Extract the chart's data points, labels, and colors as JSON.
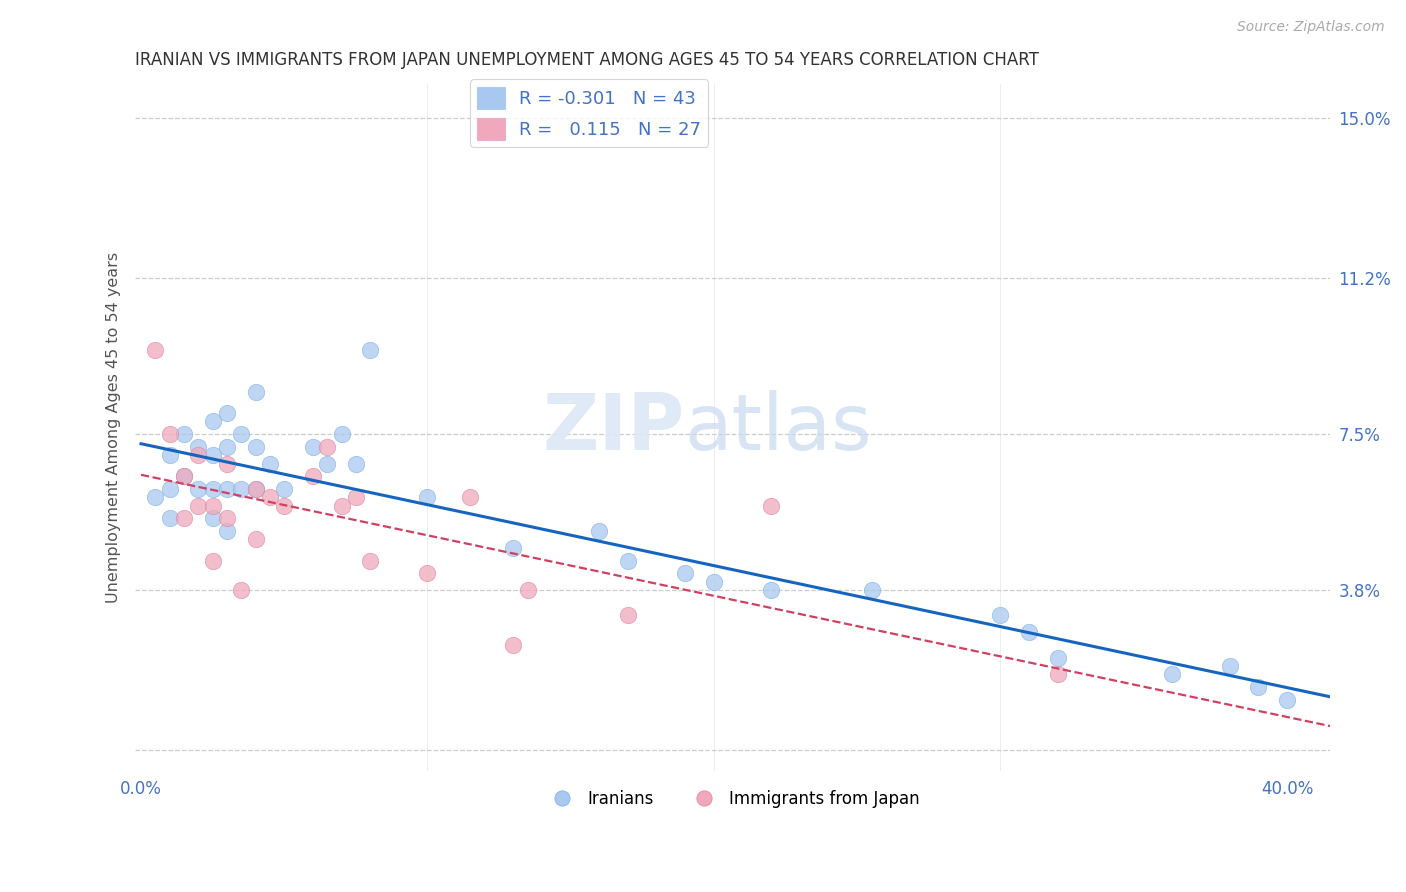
{
  "title": "IRANIAN VS IMMIGRANTS FROM JAPAN UNEMPLOYMENT AMONG AGES 45 TO 54 YEARS CORRELATION CHART",
  "source": "Source: ZipAtlas.com",
  "ylabel": "Unemployment Among Ages 45 to 54 years",
  "xlim": [
    -0.002,
    0.415
  ],
  "ylim": [
    -0.005,
    0.158
  ],
  "ytick_positions": [
    0.0,
    0.038,
    0.075,
    0.112,
    0.15
  ],
  "ytick_labels": [
    "",
    "3.8%",
    "7.5%",
    "11.2%",
    "15.0%"
  ],
  "xtick_positions": [
    0.0,
    0.1,
    0.2,
    0.3,
    0.4
  ],
  "xtick_labels": [
    "0.0%",
    "",
    "",
    "",
    "40.0%"
  ],
  "watermark_zip": "ZIP",
  "watermark_atlas": "atlas",
  "color_blue": "#a8c8f0",
  "color_pink": "#f0a8bc",
  "line_color_blue": "#1565C0",
  "line_color_pink": "#d04060",
  "iranians_x": [
    0.005,
    0.01,
    0.01,
    0.01,
    0.015,
    0.015,
    0.02,
    0.02,
    0.025,
    0.025,
    0.025,
    0.025,
    0.03,
    0.03,
    0.03,
    0.03,
    0.035,
    0.035,
    0.04,
    0.04,
    0.04,
    0.045,
    0.05,
    0.06,
    0.065,
    0.07,
    0.075,
    0.08,
    0.1,
    0.13,
    0.16,
    0.17,
    0.19,
    0.2,
    0.22,
    0.255,
    0.3,
    0.31,
    0.32,
    0.36,
    0.38,
    0.39,
    0.4
  ],
  "iranians_y": [
    0.06,
    0.07,
    0.062,
    0.055,
    0.075,
    0.065,
    0.072,
    0.062,
    0.078,
    0.07,
    0.062,
    0.055,
    0.08,
    0.072,
    0.062,
    0.052,
    0.075,
    0.062,
    0.085,
    0.072,
    0.062,
    0.068,
    0.062,
    0.072,
    0.068,
    0.075,
    0.068,
    0.095,
    0.06,
    0.048,
    0.052,
    0.045,
    0.042,
    0.04,
    0.038,
    0.038,
    0.032,
    0.028,
    0.022,
    0.018,
    0.02,
    0.015,
    0.012
  ],
  "japan_x": [
    0.005,
    0.01,
    0.015,
    0.015,
    0.02,
    0.02,
    0.025,
    0.025,
    0.03,
    0.03,
    0.035,
    0.04,
    0.04,
    0.045,
    0.05,
    0.06,
    0.065,
    0.07,
    0.075,
    0.08,
    0.1,
    0.115,
    0.13,
    0.135,
    0.17,
    0.22,
    0.32
  ],
  "japan_y": [
    0.095,
    0.075,
    0.065,
    0.055,
    0.07,
    0.058,
    0.058,
    0.045,
    0.068,
    0.055,
    0.038,
    0.062,
    0.05,
    0.06,
    0.058,
    0.065,
    0.072,
    0.058,
    0.06,
    0.045,
    0.042,
    0.06,
    0.025,
    0.038,
    0.032,
    0.058,
    0.018
  ],
  "background_color": "#ffffff",
  "grid_color": "#cccccc",
  "title_color": "#333333",
  "tick_label_color": "#4472C4"
}
